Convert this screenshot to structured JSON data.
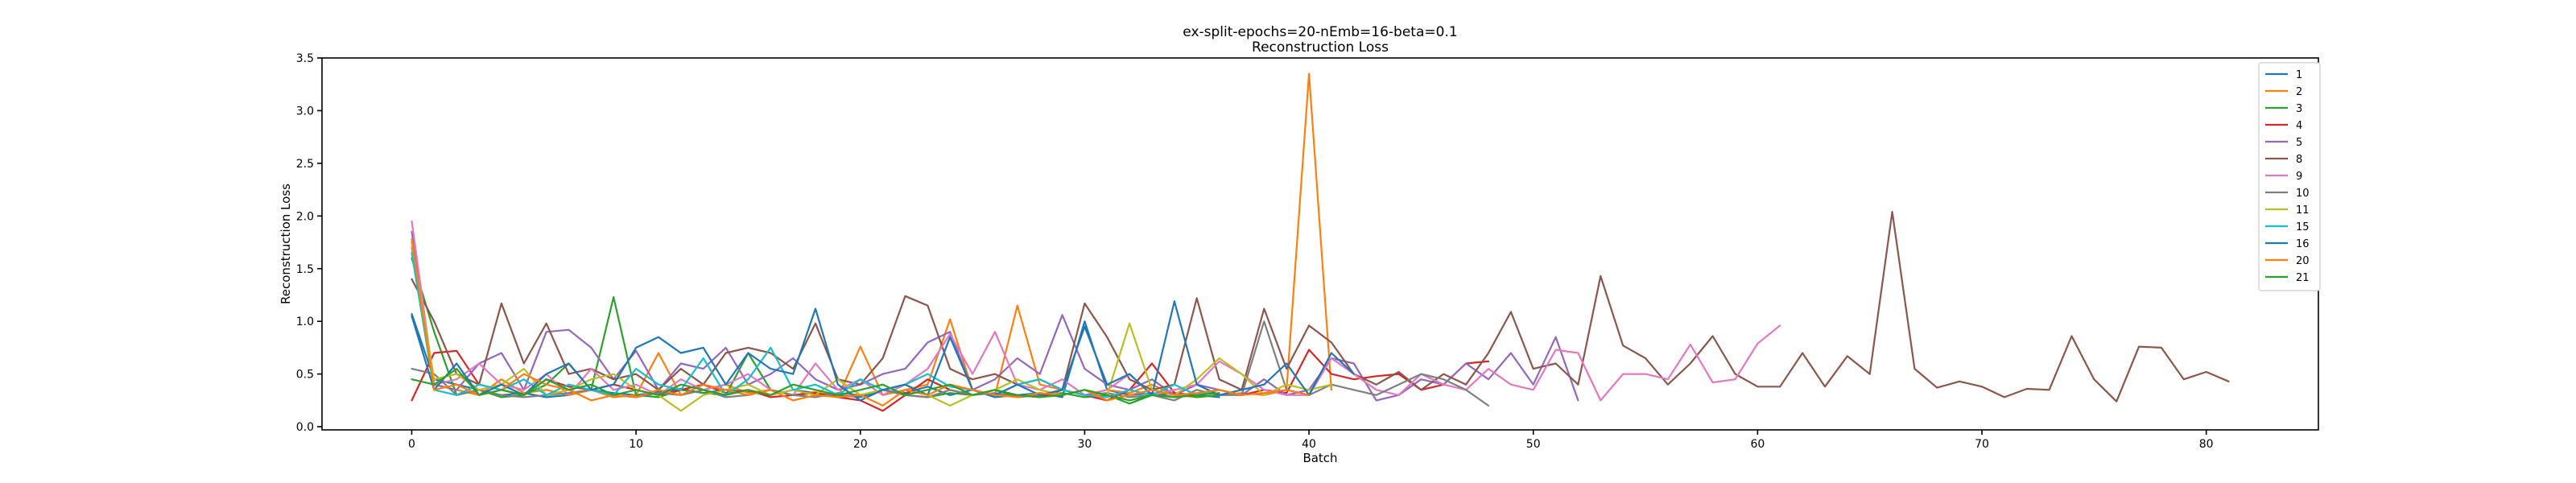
{
  "chart_data": {
    "type": "line",
    "title": "ex-split-epochs=20-nEmb=16-beta=0.1",
    "subtitle": "Reconstruction Loss",
    "xlabel": "Batch",
    "ylabel": "Reconstruction Loss",
    "xlim": [
      -4,
      85
    ],
    "ylim": [
      -0.03,
      3.5
    ],
    "xticks": [
      0,
      10,
      20,
      30,
      40,
      50,
      60,
      70,
      80
    ],
    "yticks": [
      0.0,
      0.5,
      1.0,
      1.5,
      2.0,
      2.5,
      3.0,
      3.5
    ],
    "xtick_labels": [
      "0",
      "10",
      "20",
      "30",
      "40",
      "50",
      "60",
      "70",
      "80"
    ],
    "ytick_labels": [
      "0.0",
      "0.5",
      "1.0",
      "1.5",
      "2.0",
      "2.5",
      "3.0",
      "3.5"
    ],
    "grid": false,
    "legend_position": "top-right",
    "series": [
      {
        "name": "1",
        "color": "#1f77b4",
        "y": [
          1.07,
          0.45,
          0.4,
          0.35,
          0.3,
          0.32,
          0.28,
          0.3,
          0.35,
          0.32,
          0.3,
          0.33,
          0.36,
          0.32,
          0.35,
          0.33,
          0.3,
          0.35,
          0.32,
          0.3,
          0.28,
          0.35,
          0.32,
          0.38,
          0.3,
          0.35,
          0.28,
          0.3,
          0.32,
          0.28,
          1.0,
          0.35,
          0.3,
          0.32,
          0.28,
          0.3,
          0.28
        ]
      },
      {
        "name": "2",
        "color": "#ff7f0e",
        "y": [
          1.7,
          0.4,
          0.35,
          0.3,
          0.45,
          0.32,
          0.35,
          0.3,
          0.35,
          0.28,
          0.3,
          0.7,
          0.3,
          0.35,
          0.4,
          0.32,
          0.35,
          0.3,
          0.33,
          0.28,
          0.76,
          0.3,
          0.35,
          0.4,
          1.02,
          0.35,
          0.3,
          1.15,
          0.4,
          0.35,
          0.3,
          0.35,
          0.32,
          0.4,
          0.3,
          0.28,
          0.3,
          0.32,
          0.3,
          0.35,
          3.35,
          0.35
        ]
      },
      {
        "name": "3",
        "color": "#2ca02c",
        "y": [
          1.6,
          0.9,
          0.3,
          0.35,
          0.28,
          0.3,
          0.4,
          0.6,
          0.35,
          1.23,
          0.3,
          0.28,
          0.35,
          0.32,
          0.3,
          0.7,
          0.35,
          0.3,
          0.32,
          0.28,
          0.3,
          0.35,
          0.3,
          0.28,
          0.32,
          0.3,
          0.35,
          0.28,
          0.3,
          0.32,
          0.28,
          0.3,
          0.22,
          0.3,
          0.32,
          0.28,
          0.3
        ]
      },
      {
        "name": "4",
        "color": "#d62728",
        "y": [
          0.25,
          0.7,
          0.72,
          0.4,
          0.35,
          0.3,
          0.45,
          0.38,
          0.35,
          0.4,
          0.35,
          0.3,
          0.35,
          0.4,
          0.32,
          0.35,
          0.28,
          0.3,
          0.32,
          0.28,
          0.25,
          0.15,
          0.3,
          0.45,
          0.35,
          0.3,
          0.35,
          0.3,
          0.28,
          0.35,
          0.3,
          0.25,
          0.35,
          0.6,
          0.32,
          0.3,
          0.35,
          0.3,
          0.35,
          0.32,
          0.73,
          0.5,
          0.45,
          0.48,
          0.5,
          0.35,
          0.4,
          0.6,
          0.62
        ]
      },
      {
        "name": "5",
        "color": "#9467bd",
        "y": [
          1.85,
          0.4,
          0.35,
          0.6,
          0.7,
          0.35,
          0.9,
          0.92,
          0.75,
          0.45,
          0.72,
          0.35,
          0.6,
          0.55,
          0.75,
          0.4,
          0.5,
          0.65,
          0.45,
          0.35,
          0.4,
          0.5,
          0.55,
          0.8,
          0.9,
          0.35,
          0.45,
          0.65,
          0.5,
          1.06,
          0.55,
          0.4,
          0.35,
          0.45,
          0.3,
          0.4,
          0.35,
          0.3,
          0.45,
          0.3,
          0.35,
          0.65,
          0.6,
          0.25,
          0.3,
          0.45,
          0.4,
          0.6,
          0.45,
          0.7,
          0.4,
          0.85,
          0.25
        ]
      },
      {
        "name": "8",
        "color": "#8c564b",
        "y": [
          1.4,
          1.0,
          0.5,
          0.4,
          1.17,
          0.6,
          0.98,
          0.5,
          0.55,
          0.45,
          0.5,
          0.35,
          0.55,
          0.4,
          0.7,
          0.75,
          0.7,
          0.55,
          0.98,
          0.45,
          0.4,
          0.65,
          1.24,
          1.15,
          0.55,
          0.45,
          0.5,
          0.4,
          0.45,
          0.35,
          1.17,
          0.85,
          0.45,
          0.35,
          0.4,
          1.22,
          0.45,
          0.35,
          1.12,
          0.55,
          0.96,
          0.8,
          0.5,
          0.4,
          0.52,
          0.35,
          0.5,
          0.4,
          0.7,
          1.09,
          0.55,
          0.6,
          0.4,
          1.43,
          0.77,
          0.65,
          0.4,
          0.6,
          0.86,
          0.5,
          0.38,
          0.38,
          0.7,
          0.38,
          0.67,
          0.5,
          2.04,
          0.55,
          0.37,
          0.43,
          0.38,
          0.28,
          0.36,
          0.35,
          0.86,
          0.45,
          0.24,
          0.76,
          0.75,
          0.45,
          0.52,
          0.43
        ]
      },
      {
        "name": "9",
        "color": "#e377c2",
        "y": [
          1.95,
          0.4,
          0.45,
          0.6,
          0.4,
          0.35,
          0.5,
          0.3,
          0.55,
          0.35,
          0.4,
          0.3,
          0.45,
          0.35,
          0.4,
          0.5,
          0.35,
          0.3,
          0.6,
          0.35,
          0.45,
          0.3,
          0.4,
          0.55,
          0.88,
          0.5,
          0.9,
          0.4,
          0.35,
          0.45,
          0.3,
          0.35,
          0.5,
          0.3,
          0.35,
          0.4,
          0.62,
          0.5,
          0.35,
          0.3,
          0.3,
          0.65,
          0.5,
          0.35,
          0.3,
          0.5,
          0.4,
          0.35,
          0.55,
          0.4,
          0.35,
          0.73,
          0.7,
          0.25,
          0.5,
          0.5,
          0.45,
          0.78,
          0.42,
          0.45,
          0.79,
          0.96
        ]
      },
      {
        "name": "10",
        "color": "#7f7f7f",
        "y": [
          0.55,
          0.5,
          0.3,
          0.35,
          0.3,
          0.28,
          0.3,
          0.32,
          0.35,
          0.3,
          0.28,
          0.32,
          0.3,
          0.35,
          0.28,
          0.3,
          0.35,
          0.3,
          0.28,
          0.32,
          0.3,
          0.35,
          0.3,
          0.28,
          0.35,
          0.3,
          0.32,
          0.28,
          0.3,
          0.35,
          0.3,
          0.32,
          0.28,
          0.3,
          0.25,
          0.35,
          0.3,
          0.3,
          1.0,
          0.35,
          0.3,
          0.4,
          0.35,
          0.3,
          0.4,
          0.5,
          0.45,
          0.35,
          0.2
        ]
      },
      {
        "name": "11",
        "color": "#bcbd22",
        "y": [
          1.75,
          0.45,
          0.5,
          0.35,
          0.4,
          0.55,
          0.3,
          0.35,
          0.45,
          0.5,
          0.35,
          0.3,
          0.15,
          0.3,
          0.35,
          0.4,
          0.3,
          0.35,
          0.3,
          0.45,
          0.3,
          0.35,
          0.4,
          0.3,
          0.2,
          0.3,
          0.35,
          0.45,
          0.35,
          0.3,
          0.35,
          0.3,
          0.98,
          0.35,
          0.3,
          0.45,
          0.65,
          0.5,
          0.3,
          0.4,
          0.35,
          0.4
        ]
      },
      {
        "name": "15",
        "color": "#17becf",
        "y": [
          1.65,
          0.35,
          0.3,
          0.4,
          0.35,
          0.45,
          0.3,
          0.4,
          0.35,
          0.3,
          0.55,
          0.4,
          0.35,
          0.65,
          0.3,
          0.45,
          0.75,
          0.35,
          0.4,
          0.3,
          0.45,
          0.35,
          0.4,
          0.5,
          0.38,
          0.35,
          0.3,
          0.4,
          0.45,
          0.35,
          0.3,
          0.28,
          0.35,
          0.3,
          0.4,
          0.3,
          0.35
        ]
      },
      {
        "name": "16",
        "color": "#1f77b4",
        "y": [
          1.05,
          0.35,
          0.6,
          0.3,
          0.4,
          0.3,
          0.5,
          0.6,
          0.35,
          0.4,
          0.75,
          0.85,
          0.7,
          0.75,
          0.4,
          0.7,
          0.55,
          0.5,
          1.12,
          0.4,
          0.25,
          0.35,
          0.4,
          0.3,
          0.85,
          0.35,
          0.3,
          0.4,
          0.3,
          0.35,
          0.95,
          0.4,
          0.5,
          0.3,
          1.19,
          0.4,
          0.3,
          0.35,
          0.4,
          0.6,
          0.3,
          0.7,
          0.5
        ]
      },
      {
        "name": "20",
        "color": "#ff7f0e",
        "y": [
          1.78,
          0.35,
          0.4,
          0.3,
          0.35,
          0.5,
          0.4,
          0.35,
          0.25,
          0.3,
          0.28,
          0.35,
          0.3,
          0.4,
          0.35,
          0.3,
          0.35,
          0.25,
          0.3,
          0.28,
          0.3,
          0.2,
          0.35,
          0.3,
          0.4,
          0.35,
          0.3,
          0.28,
          0.32,
          0.3,
          0.35,
          0.25,
          0.3,
          0.35,
          0.3,
          0.32,
          0.35,
          0.3,
          0.32,
          0.35,
          0.3
        ]
      },
      {
        "name": "21",
        "color": "#2ca02c",
        "y": [
          0.45,
          0.4,
          0.55,
          0.3,
          0.35,
          0.3,
          0.45,
          0.35,
          0.4,
          0.3,
          0.35,
          0.3,
          0.4,
          0.35,
          0.3,
          0.35,
          0.3,
          0.4,
          0.35,
          0.3,
          0.35,
          0.4,
          0.3,
          0.35,
          0.4,
          0.3,
          0.35,
          0.3,
          0.28,
          0.3,
          0.35,
          0.3,
          0.25,
          0.3,
          0.28,
          0.3,
          0.32
        ]
      }
    ]
  }
}
